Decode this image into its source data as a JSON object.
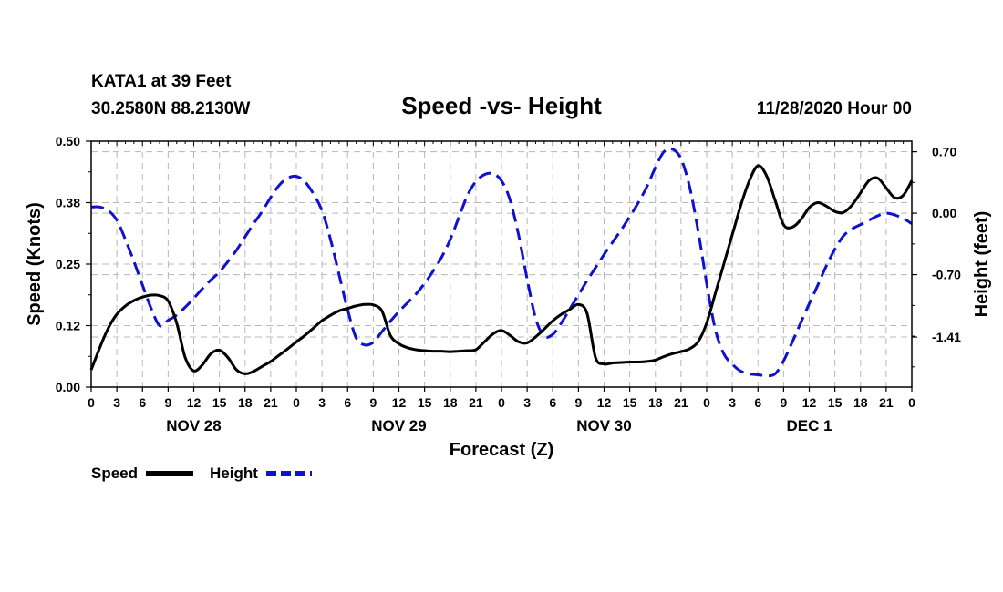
{
  "header": {
    "station": "KATA1 at 39 Feet",
    "coords": "30.2580N 88.2130W",
    "title": "Speed -vs- Height",
    "datetime": "11/28/2020 Hour 00"
  },
  "chart_data": {
    "type": "line",
    "title": "Speed -vs- Height",
    "xlabel": "Forecast (Z)",
    "ylabel_left": "Speed (Knots)",
    "ylabel_right": "Height (feet)",
    "xlim": [
      0,
      96
    ],
    "ylim_left": [
      0,
      0.5
    ],
    "ylim_right": [
      -1.98,
      0.82
    ],
    "left_ticks": [
      {
        "value": 0.0,
        "label": "0.00"
      },
      {
        "value": 0.125,
        "label": "0.12"
      },
      {
        "value": 0.25,
        "label": "0.25"
      },
      {
        "value": 0.375,
        "label": "0.38"
      },
      {
        "value": 0.5,
        "label": "0.50"
      }
    ],
    "right_ticks": [
      {
        "value": 0.7,
        "label": "0.70"
      },
      {
        "value": 0.0,
        "label": "0.00"
      },
      {
        "value": -0.7,
        "label": "-0.70"
      },
      {
        "value": -1.41,
        "label": "-1.41"
      }
    ],
    "x_ticks": [
      {
        "hour": 0,
        "label": "0"
      },
      {
        "hour": 3,
        "label": "3"
      },
      {
        "hour": 6,
        "label": "6"
      },
      {
        "hour": 9,
        "label": "9"
      },
      {
        "hour": 12,
        "label": "12"
      },
      {
        "hour": 15,
        "label": "15"
      },
      {
        "hour": 18,
        "label": "18"
      },
      {
        "hour": 21,
        "label": "21"
      },
      {
        "hour": 24,
        "label": "0"
      },
      {
        "hour": 27,
        "label": "3"
      },
      {
        "hour": 30,
        "label": "6"
      },
      {
        "hour": 33,
        "label": "9"
      },
      {
        "hour": 36,
        "label": "12"
      },
      {
        "hour": 39,
        "label": "15"
      },
      {
        "hour": 42,
        "label": "18"
      },
      {
        "hour": 45,
        "label": "21"
      },
      {
        "hour": 48,
        "label": "0"
      },
      {
        "hour": 51,
        "label": "3"
      },
      {
        "hour": 54,
        "label": "6"
      },
      {
        "hour": 57,
        "label": "9"
      },
      {
        "hour": 60,
        "label": "12"
      },
      {
        "hour": 63,
        "label": "15"
      },
      {
        "hour": 66,
        "label": "18"
      },
      {
        "hour": 69,
        "label": "21"
      },
      {
        "hour": 72,
        "label": "0"
      },
      {
        "hour": 75,
        "label": "3"
      },
      {
        "hour": 78,
        "label": "6"
      },
      {
        "hour": 81,
        "label": "9"
      },
      {
        "hour": 84,
        "label": "12"
      },
      {
        "hour": 87,
        "label": "15"
      },
      {
        "hour": 90,
        "label": "18"
      },
      {
        "hour": 93,
        "label": "21"
      },
      {
        "hour": 96,
        "label": "0"
      }
    ],
    "day_labels": [
      {
        "hour": 12,
        "label": "NOV 28"
      },
      {
        "hour": 36,
        "label": "NOV 29"
      },
      {
        "hour": 60,
        "label": "NOV 30"
      },
      {
        "hour": 84,
        "label": "DEC 1"
      }
    ],
    "series": [
      {
        "name": "Speed",
        "axis": "left",
        "color": "#000000",
        "dash": "solid",
        "points": [
          [
            0,
            0.035
          ],
          [
            1,
            0.08
          ],
          [
            2,
            0.12
          ],
          [
            3,
            0.148
          ],
          [
            4,
            0.165
          ],
          [
            5,
            0.176
          ],
          [
            6,
            0.183
          ],
          [
            7,
            0.187
          ],
          [
            8,
            0.186
          ],
          [
            9,
            0.175
          ],
          [
            10,
            0.13
          ],
          [
            11,
            0.06
          ],
          [
            12,
            0.033
          ],
          [
            13,
            0.045
          ],
          [
            14,
            0.068
          ],
          [
            15,
            0.075
          ],
          [
            16,
            0.06
          ],
          [
            17,
            0.035
          ],
          [
            18,
            0.027
          ],
          [
            19,
            0.032
          ],
          [
            20,
            0.042
          ],
          [
            21,
            0.052
          ],
          [
            22,
            0.065
          ],
          [
            23,
            0.078
          ],
          [
            24,
            0.092
          ],
          [
            25,
            0.105
          ],
          [
            26,
            0.12
          ],
          [
            27,
            0.135
          ],
          [
            28,
            0.146
          ],
          [
            29,
            0.155
          ],
          [
            30,
            0.16
          ],
          [
            31,
            0.165
          ],
          [
            32,
            0.168
          ],
          [
            33,
            0.167
          ],
          [
            34,
            0.155
          ],
          [
            35,
            0.105
          ],
          [
            36,
            0.088
          ],
          [
            37,
            0.08
          ],
          [
            38,
            0.076
          ],
          [
            39,
            0.074
          ],
          [
            40,
            0.073
          ],
          [
            41,
            0.073
          ],
          [
            42,
            0.072
          ],
          [
            43,
            0.073
          ],
          [
            44,
            0.074
          ],
          [
            45,
            0.076
          ],
          [
            46,
            0.092
          ],
          [
            47,
            0.108
          ],
          [
            48,
            0.115
          ],
          [
            49,
            0.105
          ],
          [
            50,
            0.092
          ],
          [
            51,
            0.09
          ],
          [
            52,
            0.102
          ],
          [
            53,
            0.118
          ],
          [
            54,
            0.135
          ],
          [
            55,
            0.148
          ],
          [
            56,
            0.158
          ],
          [
            57,
            0.168
          ],
          [
            58,
            0.15
          ],
          [
            59,
            0.06
          ],
          [
            60,
            0.047
          ],
          [
            61,
            0.049
          ],
          [
            62,
            0.05
          ],
          [
            63,
            0.051
          ],
          [
            64,
            0.051
          ],
          [
            65,
            0.052
          ],
          [
            66,
            0.055
          ],
          [
            67,
            0.062
          ],
          [
            68,
            0.068
          ],
          [
            69,
            0.072
          ],
          [
            70,
            0.078
          ],
          [
            71,
            0.092
          ],
          [
            72,
            0.13
          ],
          [
            73,
            0.19
          ],
          [
            74,
            0.25
          ],
          [
            75,
            0.31
          ],
          [
            76,
            0.37
          ],
          [
            77,
            0.42
          ],
          [
            78,
            0.45
          ],
          [
            79,
            0.43
          ],
          [
            80,
            0.38
          ],
          [
            81,
            0.33
          ],
          [
            82,
            0.325
          ],
          [
            83,
            0.34
          ],
          [
            84,
            0.365
          ],
          [
            85,
            0.375
          ],
          [
            86,
            0.368
          ],
          [
            87,
            0.357
          ],
          [
            88,
            0.355
          ],
          [
            89,
            0.37
          ],
          [
            90,
            0.395
          ],
          [
            91,
            0.42
          ],
          [
            92,
            0.425
          ],
          [
            93,
            0.405
          ],
          [
            94,
            0.385
          ],
          [
            95,
            0.39
          ],
          [
            96,
            0.42
          ]
        ]
      },
      {
        "name": "Height",
        "axis": "right",
        "color": "#1010d0",
        "dash": "dashed",
        "points": [
          [
            0,
            0.07
          ],
          [
            1,
            0.07
          ],
          [
            2,
            0.03
          ],
          [
            3,
            -0.08
          ],
          [
            4,
            -0.3
          ],
          [
            5,
            -0.55
          ],
          [
            6,
            -0.82
          ],
          [
            7,
            -1.08
          ],
          [
            8,
            -1.28
          ],
          [
            9,
            -1.22
          ],
          [
            10,
            -1.16
          ],
          [
            11,
            -1.07
          ],
          [
            12,
            -0.97
          ],
          [
            13,
            -0.86
          ],
          [
            14,
            -0.76
          ],
          [
            15,
            -0.67
          ],
          [
            16,
            -0.55
          ],
          [
            17,
            -0.42
          ],
          [
            18,
            -0.27
          ],
          [
            19,
            -0.12
          ],
          [
            20,
            0.02
          ],
          [
            21,
            0.18
          ],
          [
            22,
            0.32
          ],
          [
            23,
            0.4
          ],
          [
            24,
            0.42
          ],
          [
            25,
            0.36
          ],
          [
            26,
            0.22
          ],
          [
            27,
            0.03
          ],
          [
            28,
            -0.3
          ],
          [
            29,
            -0.7
          ],
          [
            30,
            -1.1
          ],
          [
            31,
            -1.42
          ],
          [
            32,
            -1.5
          ],
          [
            33,
            -1.47
          ],
          [
            34,
            -1.35
          ],
          [
            35,
            -1.23
          ],
          [
            36,
            -1.12
          ],
          [
            37,
            -1.02
          ],
          [
            38,
            -0.92
          ],
          [
            39,
            -0.8
          ],
          [
            40,
            -0.66
          ],
          [
            41,
            -0.5
          ],
          [
            42,
            -0.3
          ],
          [
            43,
            -0.05
          ],
          [
            44,
            0.2
          ],
          [
            45,
            0.36
          ],
          [
            46,
            0.44
          ],
          [
            47,
            0.45
          ],
          [
            48,
            0.37
          ],
          [
            49,
            0.15
          ],
          [
            50,
            -0.25
          ],
          [
            51,
            -0.75
          ],
          [
            52,
            -1.2
          ],
          [
            53,
            -1.4
          ],
          [
            54,
            -1.38
          ],
          [
            55,
            -1.25
          ],
          [
            56,
            -1.09
          ],
          [
            57,
            -0.93
          ],
          [
            58,
            -0.77
          ],
          [
            59,
            -0.62
          ],
          [
            60,
            -0.47
          ],
          [
            61,
            -0.33
          ],
          [
            62,
            -0.19
          ],
          [
            63,
            -0.04
          ],
          [
            64,
            0.12
          ],
          [
            65,
            0.3
          ],
          [
            66,
            0.52
          ],
          [
            67,
            0.7
          ],
          [
            68,
            0.73
          ],
          [
            69,
            0.62
          ],
          [
            70,
            0.3
          ],
          [
            71,
            -0.2
          ],
          [
            72,
            -0.8
          ],
          [
            73,
            -1.32
          ],
          [
            74,
            -1.6
          ],
          [
            75,
            -1.72
          ],
          [
            76,
            -1.8
          ],
          [
            77,
            -1.83
          ],
          [
            78,
            -1.84
          ],
          [
            79,
            -1.85
          ],
          [
            80,
            -1.83
          ],
          [
            81,
            -1.68
          ],
          [
            82,
            -1.47
          ],
          [
            83,
            -1.25
          ],
          [
            84,
            -1.03
          ],
          [
            85,
            -0.82
          ],
          [
            86,
            -0.6
          ],
          [
            87,
            -0.41
          ],
          [
            88,
            -0.26
          ],
          [
            89,
            -0.18
          ],
          [
            90,
            -0.13
          ],
          [
            91,
            -0.08
          ],
          [
            92,
            -0.03
          ],
          [
            93,
            0.0
          ],
          [
            94,
            -0.02
          ],
          [
            95,
            -0.06
          ],
          [
            96,
            -0.12
          ]
        ]
      }
    ],
    "legend": [
      {
        "label": "Speed",
        "color": "#000000",
        "dash": "solid"
      },
      {
        "label": "Height",
        "color": "#1010d0",
        "dash": "dashed"
      }
    ]
  }
}
